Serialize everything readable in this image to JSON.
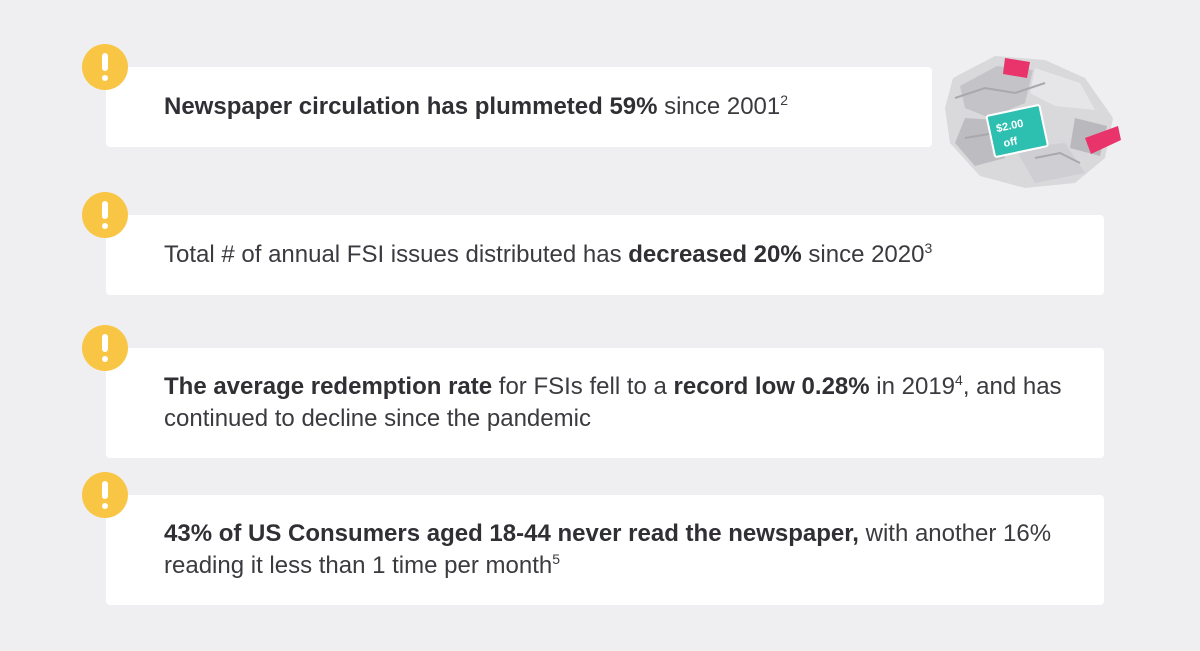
{
  "items": [
    {
      "bold1": "Newspaper circulation has plummeted 59%",
      "text1": " since 2001",
      "sup1": "2"
    },
    {
      "text1": "Total # of annual FSI issues distributed has ",
      "bold1": "decreased 20%",
      "text2": " since 2020",
      "sup1": "3"
    },
    {
      "bold1": "The average redemption rate",
      "text1": " for FSIs fell to a ",
      "bold2": "record low 0.28%",
      "text2": " in 2019",
      "sup1": "4",
      "text3": ", and has continued to decline since the pandemic"
    },
    {
      "bold1": "43% of US Consumers aged 18-44 never read the newspaper,",
      "text1": " with another 16% reading it less than 1 time per month",
      "sup1": "5"
    }
  ],
  "coupon": {
    "line1": "$2.00",
    "line2": "off"
  },
  "icons": {
    "alert": "exclamation-circle-icon",
    "newspaper": "crumpled-newspaper-icon"
  },
  "colors": {
    "background": "#efeff1",
    "card": "#ffffff",
    "alert": "#f9c545",
    "coupon": "#2dbfb0",
    "accent": "#e8336b"
  }
}
